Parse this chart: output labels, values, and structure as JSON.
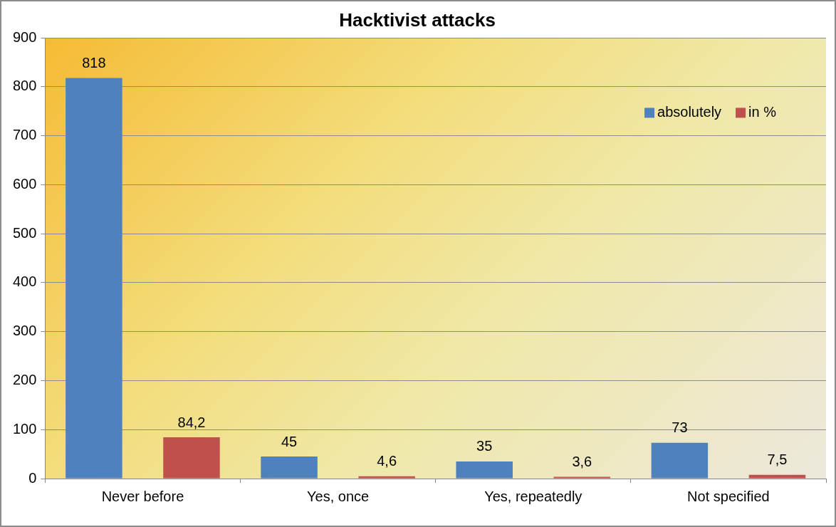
{
  "chart_data": {
    "type": "bar",
    "title": "Hacktivist attacks",
    "categories": [
      "Never before",
      "Yes, once",
      "Yes, repeatedly",
      "Not specified"
    ],
    "series": [
      {
        "name": "absolutely",
        "color": "#4f81bd",
        "values": [
          818,
          45,
          35,
          73
        ],
        "value_labels": [
          "818",
          "45",
          "35",
          "73"
        ]
      },
      {
        "name": "in %",
        "color": "#c0504d",
        "values": [
          84.2,
          4.6,
          3.6,
          7.5
        ],
        "value_labels": [
          "84,2",
          "4,6",
          "3,6",
          "7,5"
        ]
      }
    ],
    "ylim": [
      0,
      900
    ],
    "yticks": [
      0,
      100,
      200,
      300,
      400,
      500,
      600,
      700,
      800,
      900
    ],
    "grid": "y",
    "legend": "top right"
  }
}
